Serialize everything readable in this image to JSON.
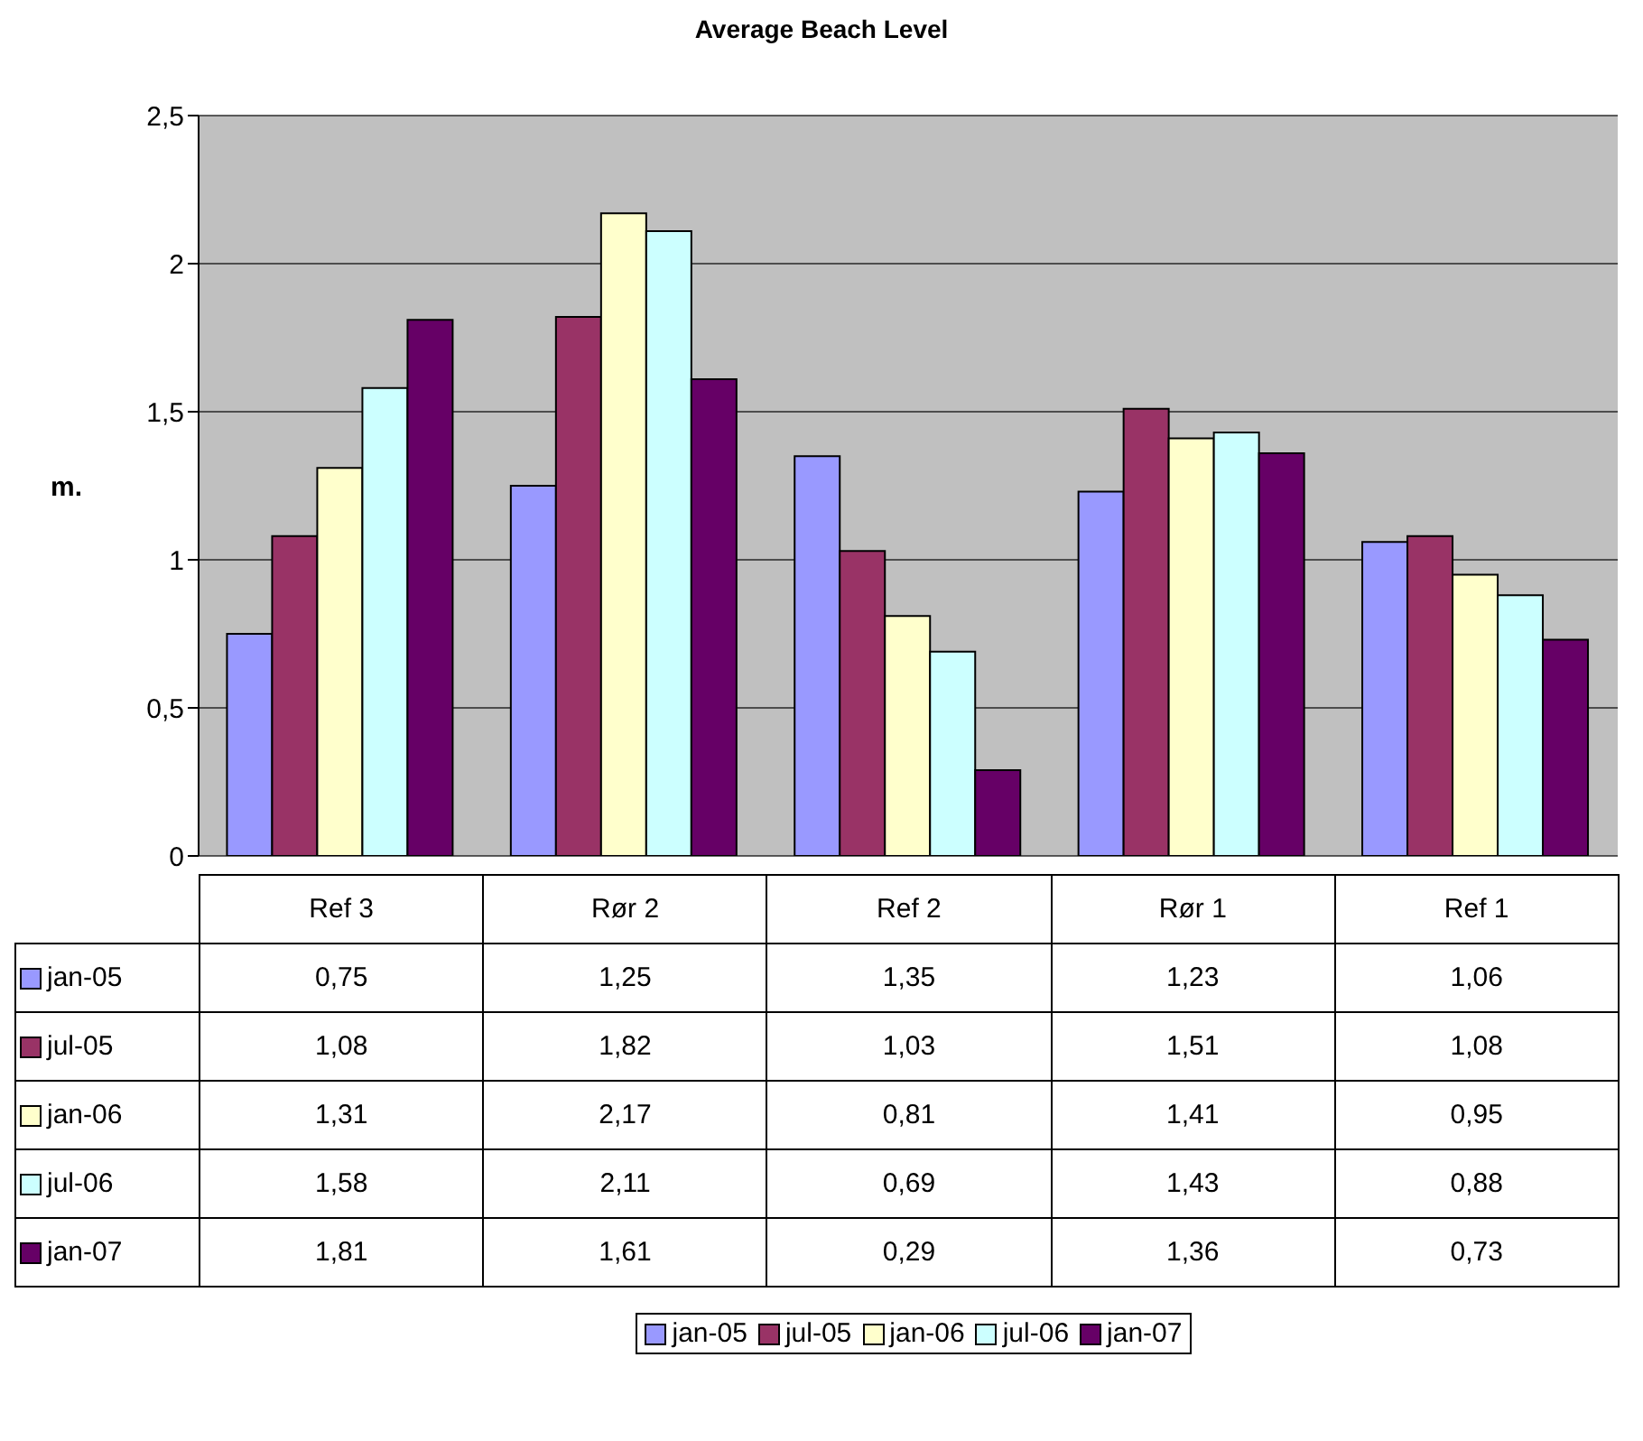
{
  "chart_data": {
    "type": "bar",
    "title": "Average Beach Level",
    "ylabel": "m.",
    "categories": [
      "Ref 3",
      "Rør 2",
      "Ref 2",
      "Rør 1",
      "Ref 1"
    ],
    "series": [
      {
        "name": "jan-05",
        "color": "#9999ff",
        "values": [
          0.75,
          1.25,
          1.35,
          1.23,
          1.06
        ],
        "value_labels": [
          "0,75",
          "1,25",
          "1,35",
          "1,23",
          "1,06"
        ]
      },
      {
        "name": "jul-05",
        "color": "#993366",
        "values": [
          1.08,
          1.82,
          1.03,
          1.51,
          1.08
        ],
        "value_labels": [
          "1,08",
          "1,82",
          "1,03",
          "1,51",
          "1,08"
        ]
      },
      {
        "name": "jan-06",
        "color": "#ffffcc",
        "values": [
          1.31,
          2.17,
          0.81,
          1.41,
          0.95
        ],
        "value_labels": [
          "1,31",
          "2,17",
          "0,81",
          "1,41",
          "0,95"
        ]
      },
      {
        "name": "jul-06",
        "color": "#ccffff",
        "values": [
          1.58,
          2.11,
          0.69,
          1.43,
          0.88
        ],
        "value_labels": [
          "1,58",
          "2,11",
          "0,69",
          "1,43",
          "0,88"
        ]
      },
      {
        "name": "jan-07",
        "color": "#660066",
        "values": [
          1.81,
          1.61,
          0.29,
          1.36,
          0.73
        ],
        "value_labels": [
          "1,81",
          "1,61",
          "0,29",
          "1,36",
          "0,73"
        ]
      }
    ],
    "ylim": [
      0,
      2.5
    ],
    "yticks": [
      0,
      {
        "value": 0.5,
        "label": "0,5"
      },
      1,
      {
        "value": 1.5,
        "label": "1,5"
      },
      2,
      {
        "value": 2.5,
        "label": "2,5"
      }
    ],
    "grid": "y",
    "legend": "bottom"
  }
}
